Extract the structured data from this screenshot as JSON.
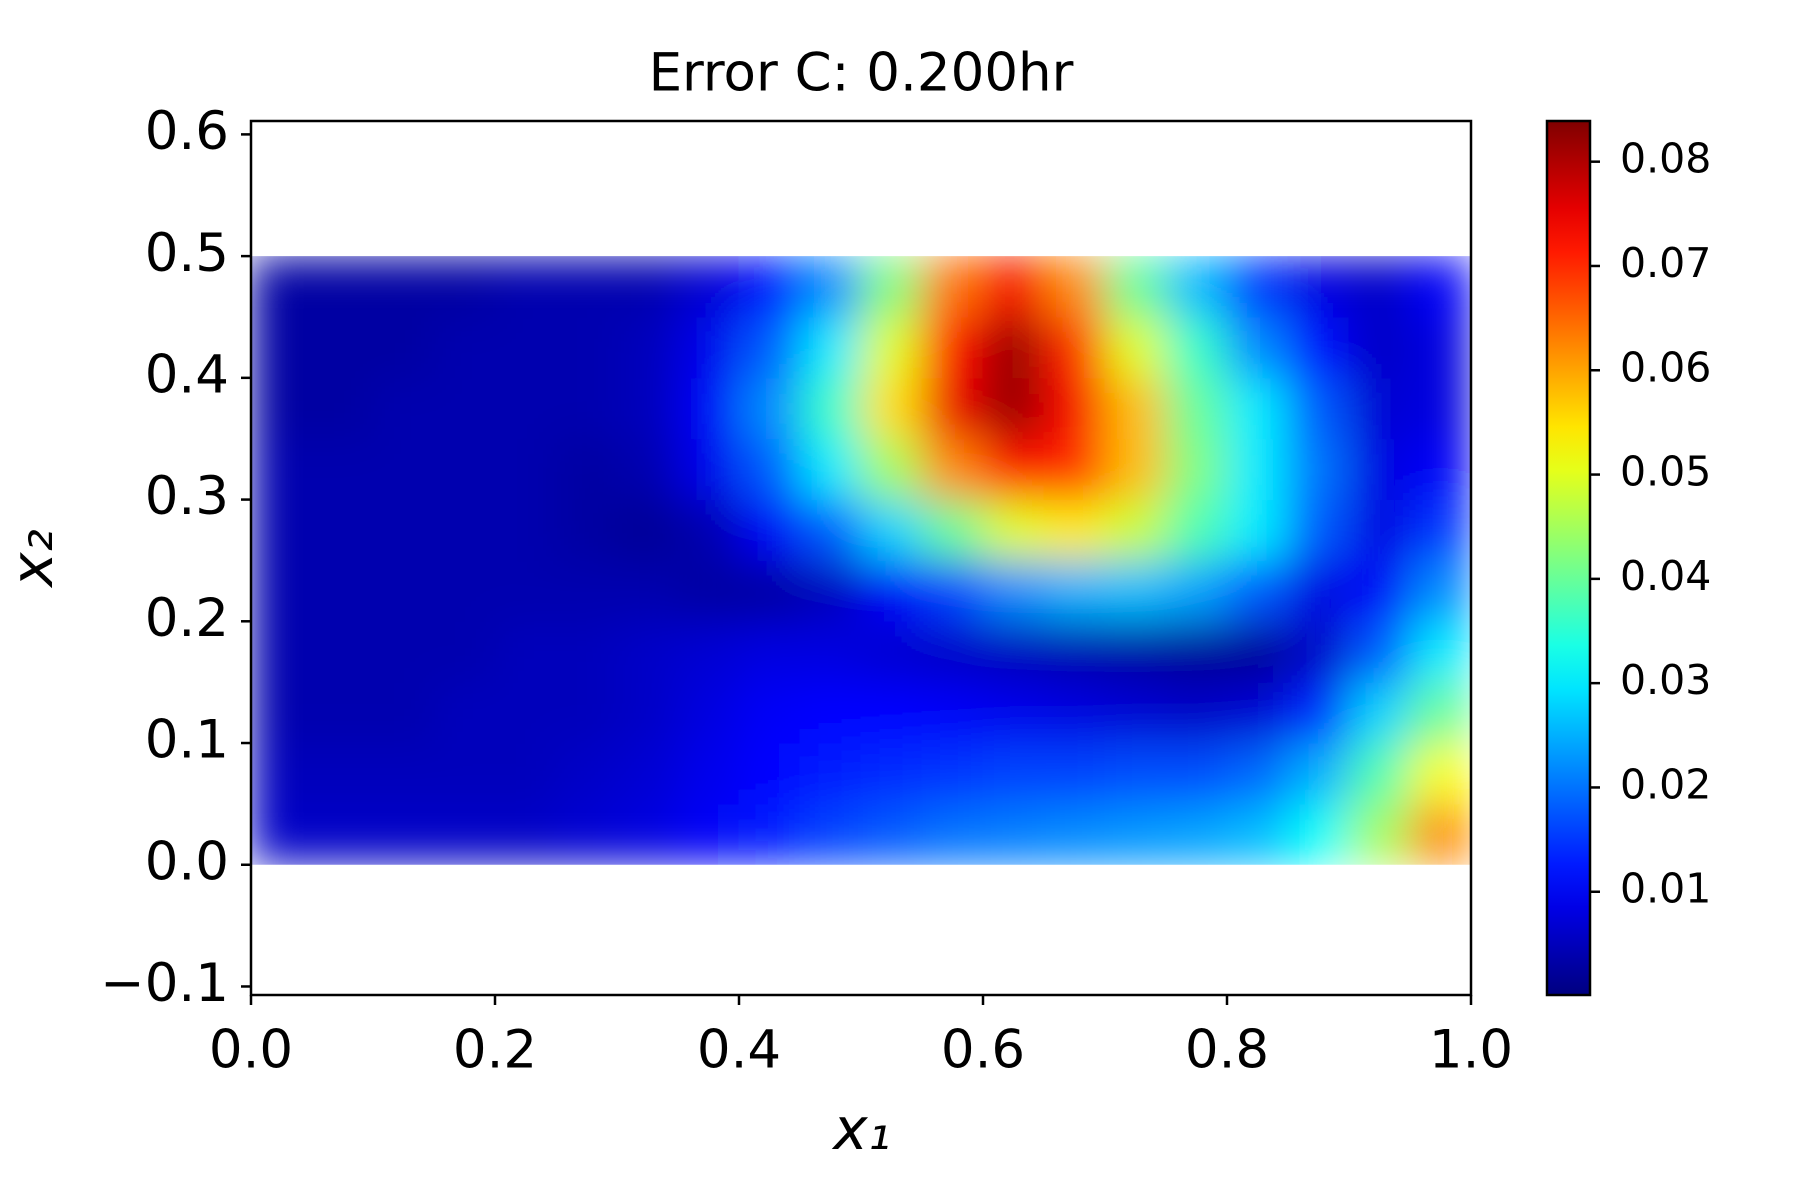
{
  "chart_data": {
    "type": "heatmap",
    "title": "Error C: 0.200hr",
    "xlabel": "x₁",
    "ylabel": "x₂",
    "colormap": "jet",
    "clim": [
      0.0001,
      0.0839
    ],
    "cticks": [
      0.01,
      0.02,
      0.03,
      0.04,
      0.05,
      0.06,
      0.07,
      0.08
    ],
    "xlim": [
      0,
      1
    ],
    "ylim": [
      -0.107,
      0.611
    ],
    "xticks": [
      {
        "value": 0,
        "label": "0.0"
      },
      {
        "value": 0.2,
        "label": "0.2"
      },
      {
        "value": 0.4,
        "label": "0.4"
      },
      {
        "value": 0.6,
        "label": "0.6"
      },
      {
        "value": 0.8,
        "label": "0.8"
      },
      {
        "value": 1,
        "label": "1.0"
      }
    ],
    "yticks": [
      {
        "value": -0.1,
        "label": "−0.1"
      },
      {
        "value": 0,
        "label": "0.0"
      },
      {
        "value": 0.1,
        "label": "0.1"
      },
      {
        "value": 0.2,
        "label": "0.2"
      },
      {
        "value": 0.3,
        "label": "0.3"
      },
      {
        "value": 0.4,
        "label": "0.4"
      },
      {
        "value": 0.5,
        "label": "0.5"
      },
      {
        "value": 0.6,
        "label": "0.6"
      }
    ],
    "x": [
      0.025,
      0.075,
      0.125,
      0.175,
      0.225,
      0.275,
      0.325,
      0.375,
      0.425,
      0.475,
      0.525,
      0.575,
      0.625,
      0.675,
      0.725,
      0.775,
      0.825,
      0.875,
      0.925,
      0.975
    ],
    "y": [
      0.025,
      0.075,
      0.125,
      0.175,
      0.225,
      0.275,
      0.325,
      0.375,
      0.425,
      0.475
    ],
    "z": [
      [
        0.006,
        0.006,
        0.006,
        0.006,
        0.006,
        0.007,
        0.008,
        0.01,
        0.013,
        0.016,
        0.018,
        0.02,
        0.021,
        0.022,
        0.023,
        0.024,
        0.026,
        0.032,
        0.045,
        0.062
      ],
      [
        0.005,
        0.005,
        0.005,
        0.005,
        0.005,
        0.006,
        0.007,
        0.009,
        0.011,
        0.013,
        0.014,
        0.015,
        0.016,
        0.016,
        0.017,
        0.017,
        0.019,
        0.025,
        0.038,
        0.052
      ],
      [
        0.004,
        0.004,
        0.004,
        0.005,
        0.005,
        0.005,
        0.006,
        0.008,
        0.01,
        0.011,
        0.011,
        0.01,
        0.009,
        0.008,
        0.007,
        0.006,
        0.007,
        0.014,
        0.028,
        0.04
      ],
      [
        0.004,
        0.004,
        0.004,
        0.004,
        0.005,
        0.005,
        0.006,
        0.007,
        0.008,
        0.008,
        0.007,
        0.006,
        0.005,
        0.004,
        0.003,
        0.002,
        0.002,
        0.006,
        0.018,
        0.03
      ],
      [
        0.004,
        0.004,
        0.004,
        0.004,
        0.004,
        0.004,
        0.004,
        0.003,
        0.003,
        0.005,
        0.01,
        0.016,
        0.022,
        0.025,
        0.026,
        0.024,
        0.018,
        0.008,
        0.01,
        0.022
      ],
      [
        0.004,
        0.004,
        0.004,
        0.004,
        0.004,
        0.003,
        0.002,
        0.004,
        0.01,
        0.018,
        0.028,
        0.04,
        0.05,
        0.054,
        0.048,
        0.038,
        0.03,
        0.018,
        0.008,
        0.015
      ],
      [
        0.004,
        0.004,
        0.004,
        0.004,
        0.004,
        0.003,
        0.004,
        0.009,
        0.018,
        0.03,
        0.045,
        0.062,
        0.072,
        0.07,
        0.058,
        0.042,
        0.03,
        0.02,
        0.008,
        0.01
      ],
      [
        0.003,
        0.003,
        0.004,
        0.004,
        0.004,
        0.004,
        0.005,
        0.01,
        0.022,
        0.036,
        0.055,
        0.075,
        0.082,
        0.074,
        0.058,
        0.04,
        0.03,
        0.018,
        0.007,
        0.008
      ],
      [
        0.003,
        0.003,
        0.003,
        0.004,
        0.004,
        0.004,
        0.005,
        0.009,
        0.018,
        0.03,
        0.05,
        0.072,
        0.082,
        0.07,
        0.05,
        0.036,
        0.022,
        0.012,
        0.006,
        0.008
      ],
      [
        0.003,
        0.003,
        0.003,
        0.003,
        0.004,
        0.004,
        0.004,
        0.007,
        0.012,
        0.022,
        0.042,
        0.064,
        0.074,
        0.062,
        0.04,
        0.026,
        0.015,
        0.008,
        0.006,
        0.01
      ]
    ]
  }
}
